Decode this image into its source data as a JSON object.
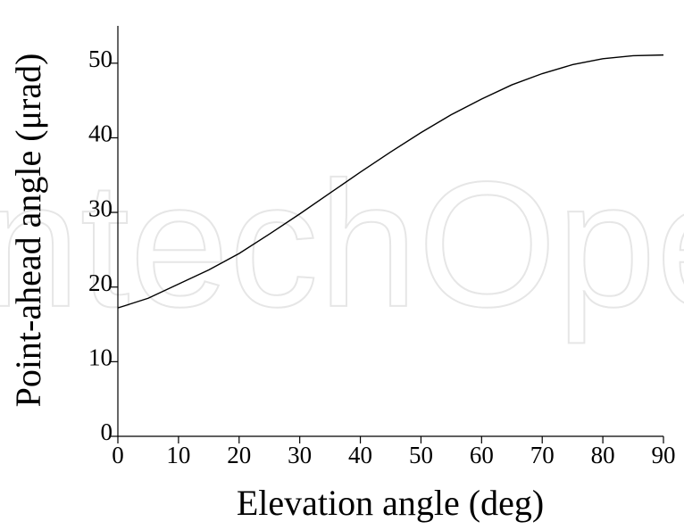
{
  "chart_data": {
    "type": "line",
    "watermark": "IntechOpen",
    "x_label": "Elevation angle (deg)",
    "y_label": "Point-ahead angle (μrad)",
    "x": [
      0,
      5,
      10,
      15,
      20,
      25,
      30,
      35,
      40,
      45,
      50,
      55,
      60,
      65,
      70,
      75,
      80,
      85,
      90
    ],
    "series": [
      {
        "name": "Point-ahead angle",
        "color": "#000000",
        "values": [
          17.2,
          18.5,
          20.4,
          22.3,
          24.5,
          27.1,
          29.8,
          32.6,
          35.4,
          38.1,
          40.7,
          43.1,
          45.2,
          47.1,
          48.6,
          49.8,
          50.6,
          51.0,
          51.1
        ]
      }
    ],
    "xlim": [
      0,
      90
    ],
    "xticks": [
      0,
      10,
      20,
      30,
      40,
      50,
      60,
      70,
      80,
      90
    ],
    "ylim": [
      0,
      55
    ],
    "yticks": [
      0,
      10,
      20,
      30,
      40,
      50
    ],
    "grid": false
  }
}
